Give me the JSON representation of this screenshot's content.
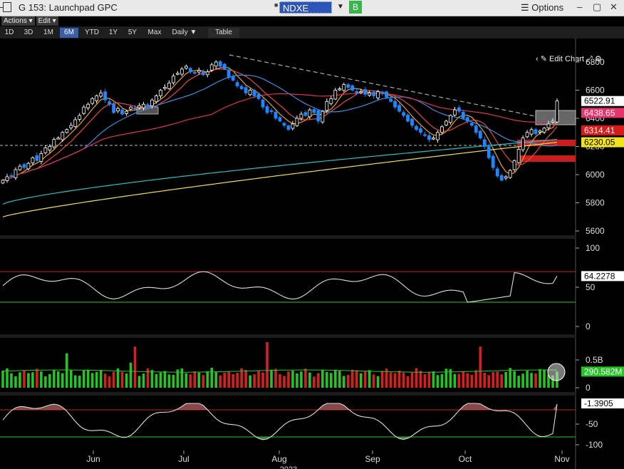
{
  "window": {
    "title": "G 153: Launchpad GPC",
    "security": "NDXE Index",
    "b_button": "B",
    "options_label": "Options",
    "options_glyph": "☰"
  },
  "menubar": {
    "actions": "Actions ▾",
    "edit": "Edit ▾"
  },
  "toolbar": {
    "ranges": [
      "1D",
      "3D",
      "1M",
      "6M",
      "YTD",
      "1Y",
      "5Y",
      "Max"
    ],
    "active_range": "6M",
    "period": "Daily ▼",
    "table": "Table",
    "edit_chart": "Edit Chart"
  },
  "price_axis": {
    "ticks": [
      "6800",
      "6600",
      "6400",
      "6200",
      "6000",
      "5800",
      "5600"
    ],
    "values": [
      6800,
      6600,
      6400,
      6200,
      6000,
      5800,
      5600
    ]
  },
  "price_tags": [
    {
      "label": "6522.91",
      "value": 6522.91,
      "bg": "#ffffff",
      "fg": "#000000"
    },
    {
      "label": "6438.65",
      "value": 6438.65,
      "bg": "#e8336e",
      "fg": "#ffffff"
    },
    {
      "label": "6314.41",
      "value": 6314.41,
      "bg": "#d81a1a",
      "fg": "#ffffff"
    },
    {
      "label": "6230.05",
      "value": 6230.05,
      "bg": "#f2e41c",
      "fg": "#000000"
    }
  ],
  "rsi": {
    "ticks": [
      "100",
      "50",
      "0"
    ],
    "last_label": "64.2278",
    "upper": 70,
    "lower": 30
  },
  "volume": {
    "ticks": [
      "0.5B",
      "0"
    ],
    "last_label": "290.582M"
  },
  "osc": {
    "ticks": [
      "-50",
      "-100"
    ],
    "last_label": "-1.3905"
  },
  "x_axis": {
    "months": [
      "Jun",
      "Jul",
      "Aug",
      "Sep",
      "Oct",
      "Nov"
    ],
    "year": "2023"
  },
  "colors": {
    "up": "#ffffff",
    "down": "#1e86ff",
    "ma_red": "#e84848",
    "ma_orange": "#f0a020",
    "ma_pink": "#e0305a",
    "ma_cyan": "#21c3c7",
    "ma_yellow": "#f0e050",
    "ma_blue": "#3a8ee0"
  },
  "chart_data": {
    "type": "line",
    "ylim": [
      5560,
      6880
    ],
    "ohlc_close": [
      5960,
      5985,
      5990,
      6035,
      6060,
      6050,
      6080,
      6120,
      6100,
      6150,
      6190,
      6200,
      6250,
      6260,
      6300,
      6320,
      6350,
      6390,
      6420,
      6480,
      6500,
      6540,
      6560,
      6580,
      6530,
      6500,
      6440,
      6470,
      6430,
      6450,
      6480,
      6470,
      6490,
      6500,
      6480,
      6530,
      6560,
      6600,
      6620,
      6650,
      6700,
      6720,
      6750,
      6770,
      6730,
      6720,
      6740,
      6710,
      6730,
      6780,
      6800,
      6770,
      6750,
      6690,
      6670,
      6630,
      6610,
      6580,
      6600,
      6560,
      6540,
      6480,
      6440,
      6450,
      6400,
      6380,
      6350,
      6320,
      6360,
      6400,
      6430,
      6420,
      6460,
      6440,
      6380,
      6450,
      6520,
      6540,
      6600,
      6610,
      6640,
      6620,
      6600,
      6580,
      6590,
      6570,
      6580,
      6560,
      6590,
      6580,
      6550,
      6520,
      6480,
      6450,
      6420,
      6380,
      6350,
      6320,
      6300,
      6280,
      6250,
      6260,
      6300,
      6340,
      6380,
      6420,
      6460,
      6450,
      6400,
      6380,
      6350,
      6300,
      6260,
      6200,
      6120,
      6050,
      5990,
      5960,
      5985,
      6030,
      6100,
      6180,
      6260,
      6300,
      6320,
      6290,
      6310,
      6330,
      6360,
      6380,
      6522.91
    ],
    "rsi_value": 64.2278,
    "volume_last": 290.582
  }
}
